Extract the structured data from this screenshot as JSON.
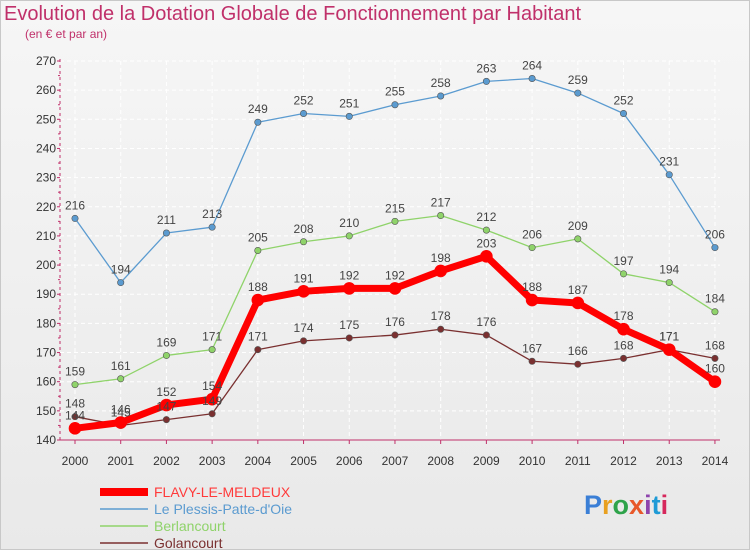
{
  "title": "Evolution de la Dotation Globale de Fonctionnement par Habitant",
  "subtitle": "(en € et par an)",
  "logo": {
    "text": "Proxiti",
    "colors": [
      "#3b7fd6",
      "#e8a020",
      "#2ea34a",
      "#e8582a",
      "#8e44ad",
      "#1f9bd6",
      "#d6285c"
    ]
  },
  "chart_data": {
    "type": "line",
    "x": [
      "2000",
      "2001",
      "2002",
      "2003",
      "2004",
      "2005",
      "2006",
      "2007",
      "2008",
      "2009",
      "2010",
      "2011",
      "2012",
      "2013",
      "2014"
    ],
    "ylim": [
      140,
      270
    ],
    "yticks": [
      140,
      150,
      160,
      170,
      180,
      190,
      200,
      210,
      220,
      230,
      240,
      250,
      260,
      270
    ],
    "grid": true,
    "legend_position": "bottom-left",
    "series": [
      {
        "name": "Le Plessis-Patte-d'Oie",
        "color": "#5b9bd0",
        "values": [
          216,
          194,
          211,
          213,
          249,
          252,
          251,
          255,
          258,
          263,
          264,
          259,
          252,
          231,
          206
        ]
      },
      {
        "name": "Berlancourt",
        "color": "#8fd36a",
        "values": [
          159,
          161,
          169,
          171,
          205,
          208,
          210,
          215,
          217,
          212,
          206,
          209,
          197,
          194,
          184
        ]
      },
      {
        "name": "Golancourt",
        "color": "#7a3030",
        "values": [
          148,
          145,
          147,
          149,
          171,
          174,
          175,
          176,
          178,
          176,
          167,
          166,
          168,
          171,
          168
        ]
      },
      {
        "name": "FLAVY-LE-MELDEUX",
        "color": "#ff0000",
        "values": [
          144,
          146,
          152,
          154,
          188,
          191,
          192,
          192,
          198,
          203,
          188,
          187,
          178,
          171,
          160
        ]
      }
    ],
    "legend_order": [
      "FLAVY-LE-MELDEUX",
      "Le Plessis-Patte-d'Oie",
      "Berlancourt",
      "Golancourt"
    ]
  }
}
